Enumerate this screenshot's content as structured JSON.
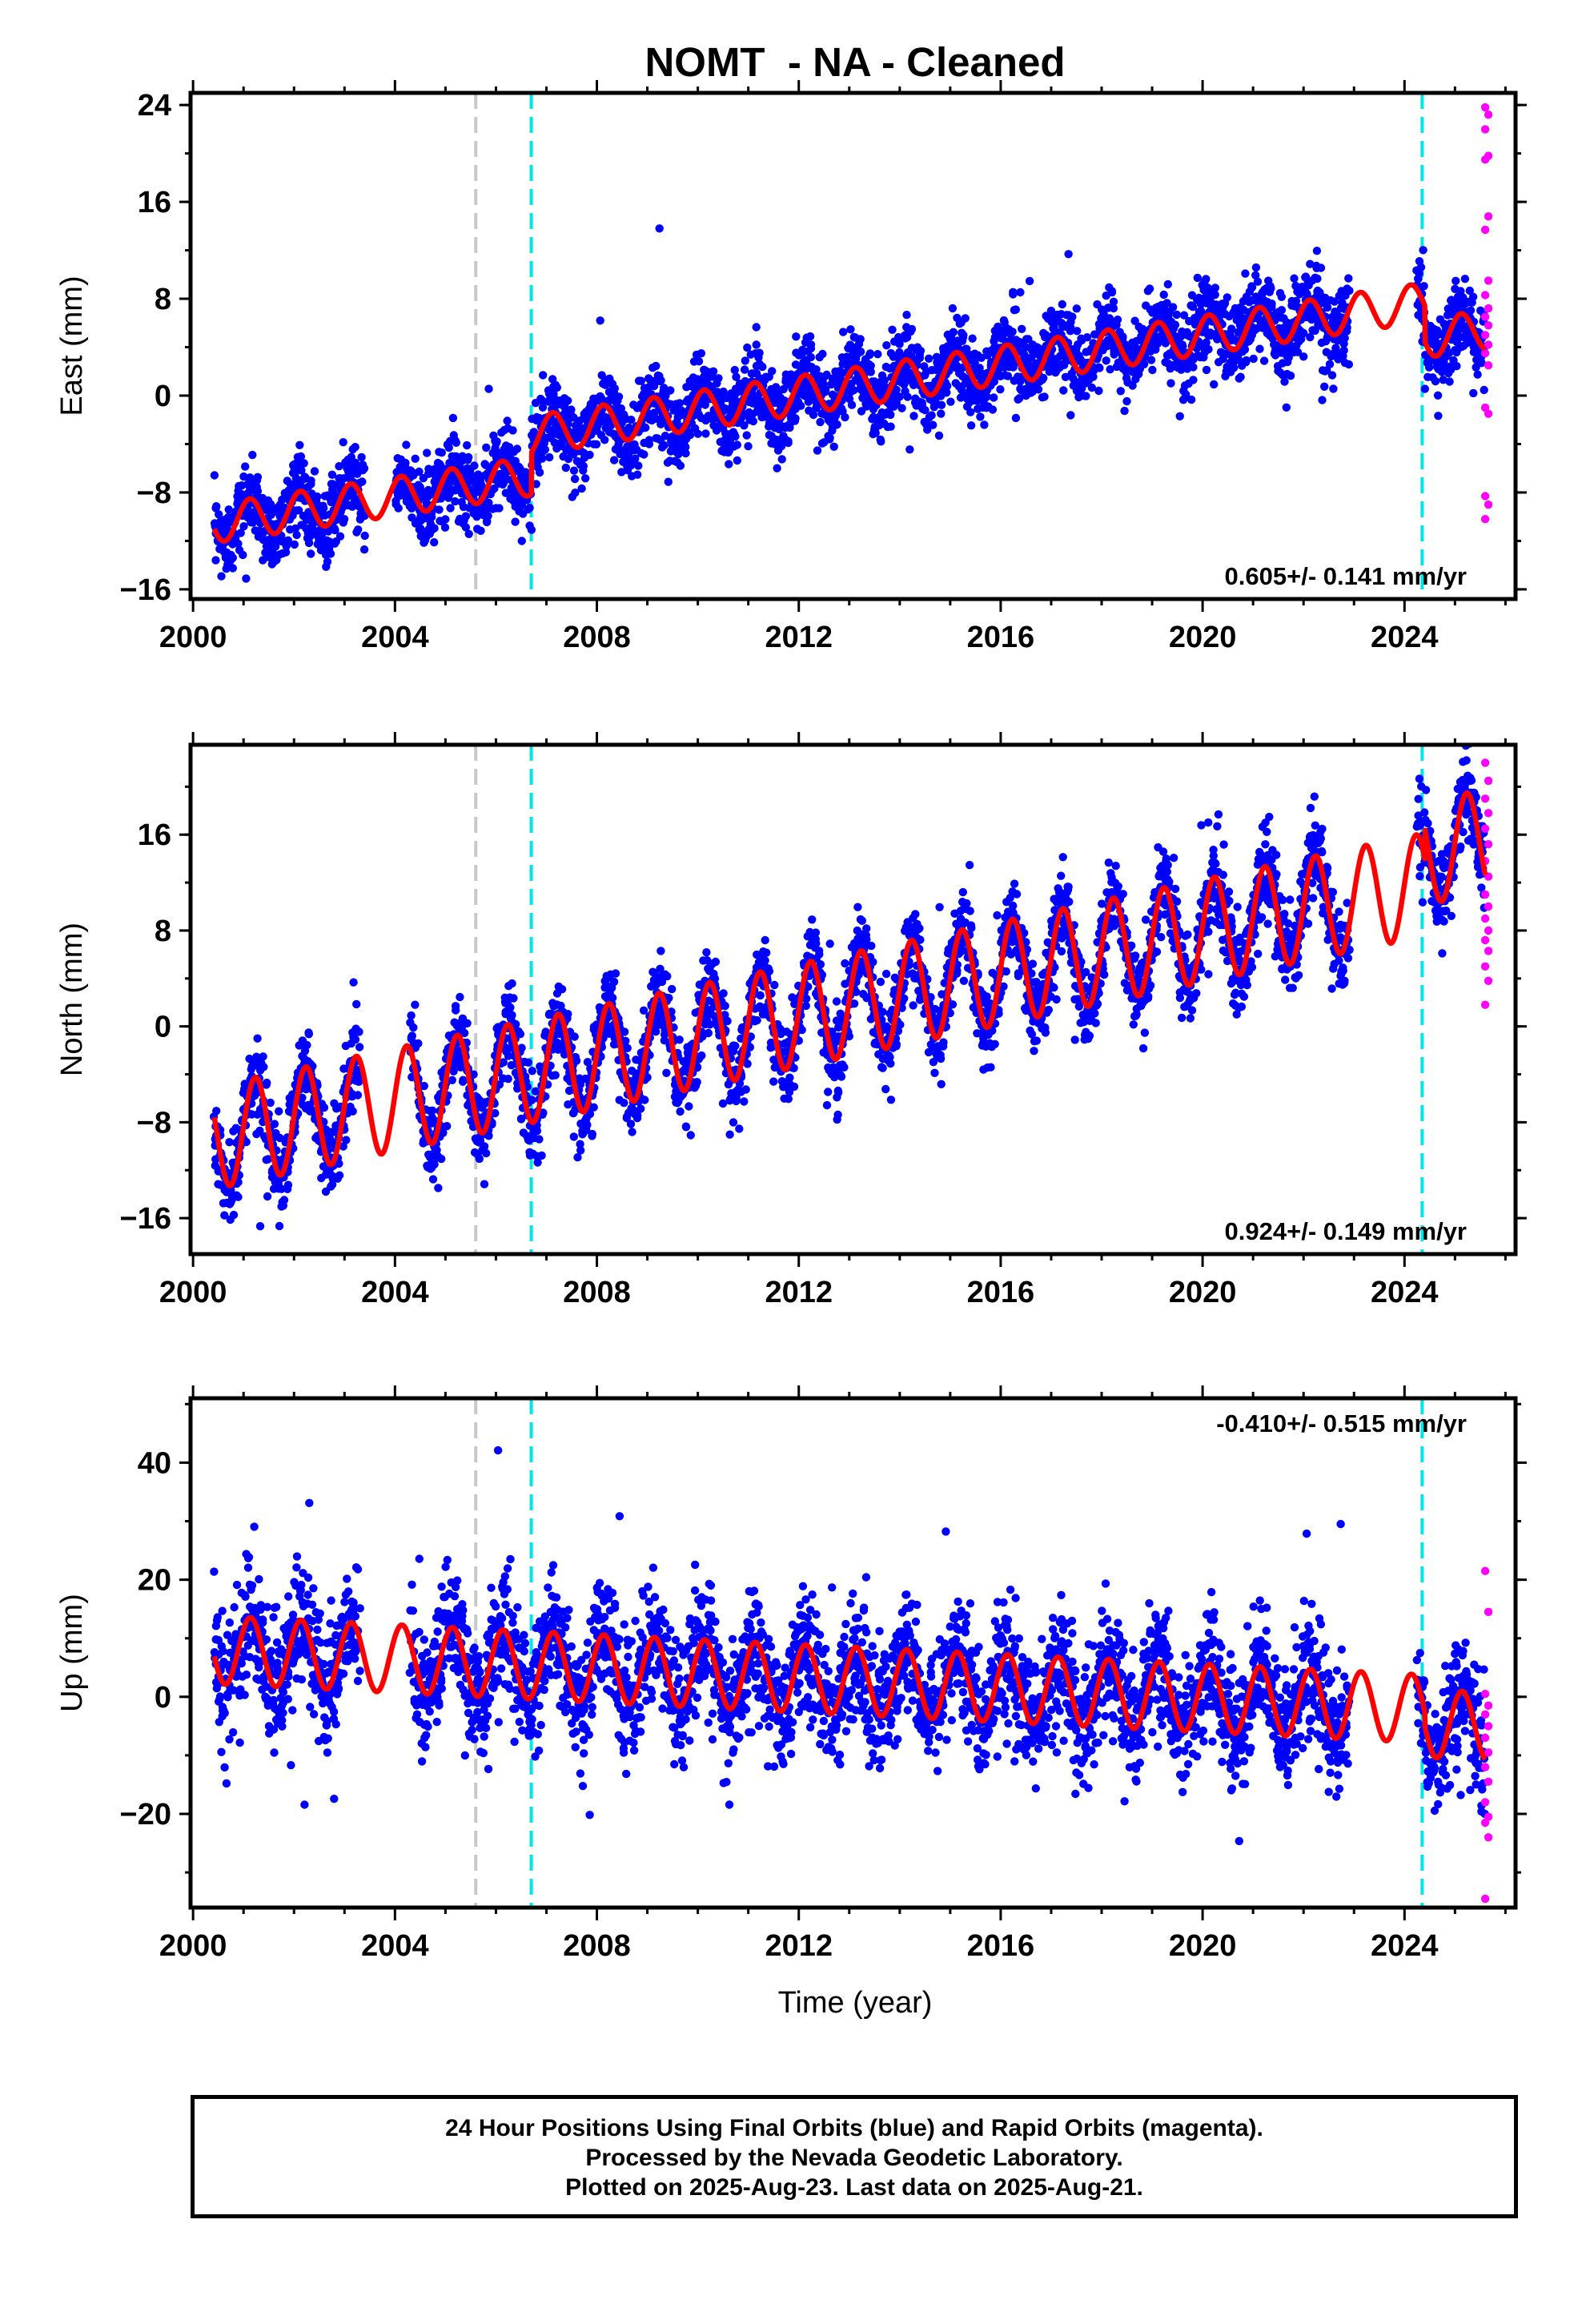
{
  "chart_data": {
    "type": "scatter",
    "title": "NOMT  - NA - Cleaned",
    "xlabel": "Time (year)",
    "xlim": [
      1999.95,
      2026.2
    ],
    "x_ticks": [
      2000,
      2004,
      2008,
      2012,
      2016,
      2020,
      2024
    ],
    "series_legend": [
      "Final Orbits (blue)",
      "Rapid Orbits (magenta)"
    ],
    "colors": {
      "final": "#0000ff",
      "rapid": "#ff00ff",
      "model": "#ff0000",
      "break_gray": "#c8c8c8",
      "break_cyan": "#00e5e5"
    },
    "panels": [
      {
        "id": "east",
        "ylabel": "East (mm)",
        "ylim": [
          -16.8,
          25
        ],
        "y_ticks": [
          -16,
          -8,
          0,
          8,
          16,
          24
        ],
        "rate": "0.605+/- 0.141 mm/yr",
        "model": {
          "t0": 2000.5,
          "v0": -10.5,
          "slope": 0.62,
          "amp": 1.6,
          "phase": 0.8
        },
        "offsets": [
          {
            "year": 2006.7,
            "delta": 3.4
          },
          {
            "year": 2024.4,
            "delta": -3.0
          }
        ],
        "scatter_sd": 1.6,
        "gaps": [
          [
            2003.4,
            2004.0
          ],
          [
            2022.9,
            2024.25
          ]
        ],
        "rapid_points": [
          23.8,
          23.2,
          22.0,
          19.8,
          19.5,
          14.8,
          13.7,
          9.5,
          8.3,
          7.2,
          6.5,
          5.8,
          5.0,
          4.2,
          3.5,
          2.5,
          -1.0,
          -1.5,
          -8.3,
          -9.0,
          -10.2
        ],
        "breaks": [
          {
            "year": 2005.6,
            "color": "gray"
          },
          {
            "year": 2006.7,
            "color": "cyan"
          },
          {
            "year": 2024.35,
            "color": "cyan"
          }
        ]
      },
      {
        "id": "north",
        "ylabel": "North (mm)",
        "ylim": [
          -19,
          23.5
        ],
        "y_ticks": [
          -16,
          -8,
          0,
          8,
          16
        ],
        "rate": "0.924+/- 0.149 mm/yr",
        "model": {
          "t0": 2000.5,
          "v0": -9.2,
          "slope": 0.88,
          "amp": 4.3,
          "phase": 0.1
        },
        "offsets": [
          {
            "year": 2024.4,
            "delta": 2.6
          }
        ],
        "scatter_sd": 1.7,
        "gaps": [
          [
            2003.3,
            2004.3
          ],
          [
            2022.9,
            2024.25
          ]
        ],
        "rapid_points": [
          22.0,
          20.5,
          19.0,
          17.8,
          16.5,
          15.2,
          13.8,
          12.5,
          11.0,
          10.0,
          9.0,
          8.0,
          7.2,
          6.3,
          5.0,
          3.8,
          1.8
        ],
        "breaks": [
          {
            "year": 2005.6,
            "color": "gray"
          },
          {
            "year": 2006.7,
            "color": "cyan"
          },
          {
            "year": 2024.35,
            "color": "cyan"
          }
        ]
      },
      {
        "id": "up",
        "ylabel": "Up (mm)",
        "ylim": [
          -36,
          51
        ],
        "y_ticks": [
          -20,
          0,
          20,
          40
        ],
        "rate": "-0.410+/- 0.515 mm/yr",
        "model": {
          "t0": 2000.5,
          "v0": 8.0,
          "slope": -0.42,
          "amp": 5.8,
          "phase": 0.7
        },
        "offsets": [
          {
            "year": 2024.4,
            "delta": -2.5
          }
        ],
        "scatter_sd": 5.2,
        "gaps": [
          [
            2003.3,
            2004.3
          ],
          [
            2022.9,
            2024.25
          ]
        ],
        "rapid_points": [
          21.5,
          14.5,
          0.5,
          -1.5,
          -3.0,
          -5.0,
          -7.0,
          -9.5,
          -12.0,
          -14.5,
          -18.0,
          -20.5,
          -21.5,
          -24.0,
          -34.5
        ],
        "breaks": [
          {
            "year": 2005.6,
            "color": "gray"
          },
          {
            "year": 2006.7,
            "color": "cyan"
          },
          {
            "year": 2024.35,
            "color": "cyan"
          }
        ]
      }
    ],
    "footer": [
      "24 Hour Positions Using Final Orbits (blue) and Rapid Orbits (magenta).",
      "Processed by the Nevada Geodetic Laboratory.",
      "Plotted on 2025-Aug-23. Last data on 2025-Aug-21."
    ]
  }
}
